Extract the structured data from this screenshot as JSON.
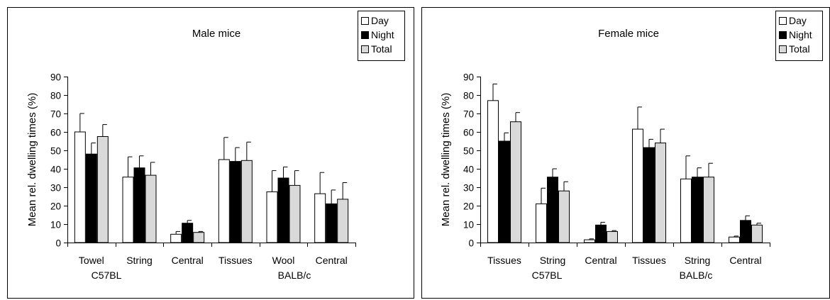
{
  "chart_data": [
    {
      "type": "bar",
      "title": "Male mice",
      "ylabel": "Mean rel. dwelling times (%)",
      "xlabel": "",
      "ylim": [
        0,
        90
      ],
      "yticks": [
        "0",
        "10",
        "20",
        "30",
        "40",
        "50",
        "60",
        "70",
        "80",
        "90"
      ],
      "categories": [
        "Towel",
        "String",
        "Central",
        "Tissues",
        "Wool",
        "Central"
      ],
      "group_labels": [
        "C57BL",
        "BALB/c"
      ],
      "legend": {
        "placement": "top-right",
        "entries": [
          "Day",
          "Night",
          "Total"
        ]
      },
      "series": [
        {
          "name": "Day",
          "color": "#ffffff",
          "values": [
            60,
            35.5,
            4.5,
            45,
            27.5,
            26.5
          ],
          "errors": [
            10,
            11,
            1.5,
            12,
            11.5,
            11.5
          ]
        },
        {
          "name": "Night",
          "color": "#000000",
          "values": [
            48,
            40.5,
            10.5,
            44,
            35,
            21
          ],
          "errors": [
            6,
            6.5,
            1.5,
            7.5,
            6,
            7.5
          ]
        },
        {
          "name": "Total",
          "color": "#d9d9d9",
          "values": [
            57.5,
            36.5,
            5.5,
            44.5,
            31,
            23.5
          ],
          "errors": [
            6.5,
            7,
            0.5,
            10,
            8,
            9
          ]
        }
      ]
    },
    {
      "type": "bar",
      "title": "Female mice",
      "ylabel": "Mean rel. dwelling times (%)",
      "xlabel": "",
      "ylim": [
        0,
        90
      ],
      "yticks": [
        "0",
        "10",
        "20",
        "30",
        "40",
        "50",
        "60",
        "70",
        "80",
        "90"
      ],
      "categories": [
        "Tissues",
        "String",
        "Central",
        "Tissues",
        "String",
        "Central"
      ],
      "group_labels": [
        "C57BL",
        "BALB/c"
      ],
      "legend": {
        "placement": "top-right",
        "entries": [
          "Day",
          "Night",
          "Total"
        ]
      },
      "series": [
        {
          "name": "Day",
          "color": "#ffffff",
          "values": [
            77,
            21,
            1.5,
            61.5,
            34.5,
            3
          ],
          "errors": [
            9,
            8.5,
            0.5,
            12,
            12.5,
            0.5
          ]
        },
        {
          "name": "Night",
          "color": "#000000",
          "values": [
            55,
            35.5,
            9.5,
            51.5,
            35.5,
            12
          ],
          "errors": [
            4.5,
            4.5,
            1.5,
            4.5,
            5,
            2.5
          ]
        },
        {
          "name": "Total",
          "color": "#d9d9d9",
          "values": [
            65.5,
            28,
            6,
            54,
            35.5,
            9.5
          ],
          "errors": [
            5,
            5,
            0.5,
            7.5,
            7.5,
            1
          ]
        }
      ]
    }
  ]
}
